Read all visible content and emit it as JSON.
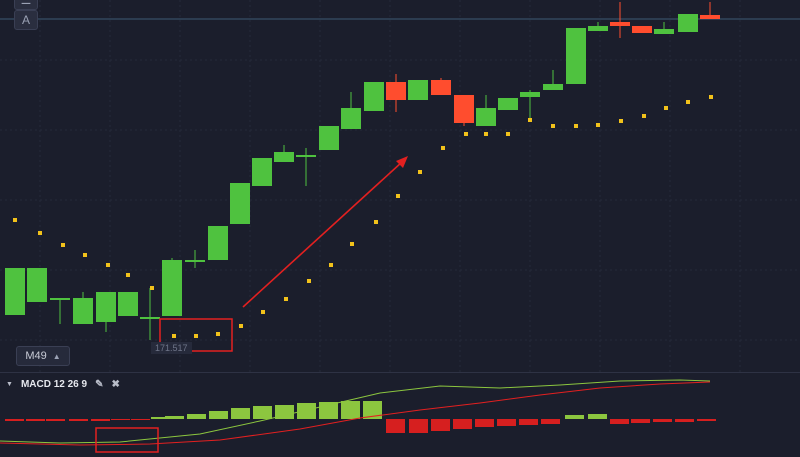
{
  "toolbar": {
    "top_button_label": "A",
    "timeframe_label": "M49"
  },
  "chart": {
    "price_readout": "171.517",
    "colors": {
      "background": "#1b1e2c",
      "bull": "#4fc23f",
      "bear": "#ff4d2e",
      "sar_dot": "#f2c21b",
      "annotation": "#e32020",
      "grid": "#262a3a",
      "crosshair": "#3d5a73"
    }
  },
  "indicator": {
    "name": "MACD 12 26 9",
    "edit_icon": "pencil-icon",
    "close_icon": "close-icon",
    "colors": {
      "hist_pos": "#8cc63f",
      "hist_neg": "#d61f1f",
      "macd_line": "#8cc63f",
      "signal_line": "#e32020"
    }
  }
}
